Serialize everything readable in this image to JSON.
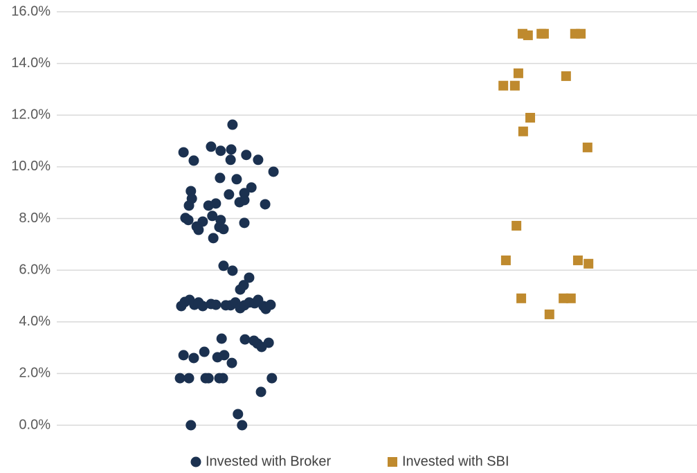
{
  "chart_data": {
    "type": "scatter",
    "xlim": [
      0,
      2
    ],
    "ylim": [
      0,
      16
    ],
    "yticks": [
      {
        "value": 0,
        "label": "0.0%"
      },
      {
        "value": 2,
        "label": "2.0%"
      },
      {
        "value": 4,
        "label": "4.0%"
      },
      {
        "value": 6,
        "label": "6.0%"
      },
      {
        "value": 8,
        "label": "8.0%"
      },
      {
        "value": 10,
        "label": "10.0%"
      },
      {
        "value": 12,
        "label": "12.0%"
      },
      {
        "value": 14,
        "label": "14.0%"
      },
      {
        "value": 16,
        "label": "16.0%"
      }
    ],
    "grid": true,
    "legend": "bottom",
    "series": [
      {
        "name": "Invested with Broker",
        "color": "#1b3150",
        "marker": "circle",
        "x": [
          0.549,
          0.396,
          0.428,
          0.482,
          0.512,
          0.545,
          0.543,
          0.592,
          0.629,
          0.677,
          0.51,
          0.562,
          0.608,
          0.586,
          0.538,
          0.419,
          0.422,
          0.413,
          0.474,
          0.497,
          0.571,
          0.586,
          0.651,
          0.402,
          0.411,
          0.456,
          0.486,
          0.512,
          0.437,
          0.443,
          0.508,
          0.521,
          0.586,
          0.489,
          0.521,
          0.549,
          0.601,
          0.584,
          0.573,
          0.389,
          0.4,
          0.415,
          0.43,
          0.443,
          0.456,
          0.482,
          0.497,
          0.528,
          0.543,
          0.558,
          0.573,
          0.586,
          0.601,
          0.618,
          0.629,
          0.646,
          0.653,
          0.668,
          0.515,
          0.588,
          0.616,
          0.627,
          0.64,
          0.662,
          0.396,
          0.428,
          0.461,
          0.502,
          0.523,
          0.547,
          0.385,
          0.413,
          0.465,
          0.474,
          0.508,
          0.519,
          0.672,
          0.638,
          0.566,
          0.419,
          0.579
        ],
        "values": [
          11.63,
          10.56,
          10.24,
          10.78,
          10.62,
          10.67,
          10.27,
          10.46,
          10.27,
          9.81,
          9.57,
          9.52,
          9.2,
          8.98,
          8.93,
          9.06,
          8.77,
          8.5,
          8.5,
          8.58,
          8.63,
          8.71,
          8.55,
          8.02,
          7.94,
          7.88,
          8.1,
          7.94,
          7.69,
          7.56,
          7.67,
          7.59,
          7.83,
          7.24,
          6.17,
          5.98,
          5.71,
          5.42,
          5.25,
          4.61,
          4.77,
          4.85,
          4.66,
          4.75,
          4.61,
          4.69,
          4.66,
          4.64,
          4.64,
          4.75,
          4.53,
          4.64,
          4.75,
          4.72,
          4.85,
          4.61,
          4.5,
          4.66,
          3.35,
          3.32,
          3.27,
          3.16,
          3.03,
          3.19,
          2.71,
          2.6,
          2.84,
          2.63,
          2.71,
          2.41,
          1.82,
          1.82,
          1.82,
          1.82,
          1.82,
          1.82,
          1.82,
          1.29,
          0.43,
          0,
          0
        ]
      },
      {
        "name": "Invested with SBI",
        "color": "#bf8a2e",
        "marker": "square",
        "x": [
          1.455,
          1.472,
          1.514,
          1.522,
          1.619,
          1.637,
          1.442,
          1.591,
          1.395,
          1.431,
          1.479,
          1.457,
          1.658,
          1.436,
          1.403,
          1.628,
          1.661,
          1.451,
          1.583,
          1.606,
          1.539
        ],
        "values": [
          15.15,
          15.09,
          15.15,
          15.15,
          15.15,
          15.15,
          13.62,
          13.51,
          13.14,
          13.14,
          11.9,
          11.37,
          10.75,
          7.72,
          6.38,
          6.38,
          6.25,
          4.91,
          4.91,
          4.91,
          4.29
        ]
      }
    ]
  }
}
